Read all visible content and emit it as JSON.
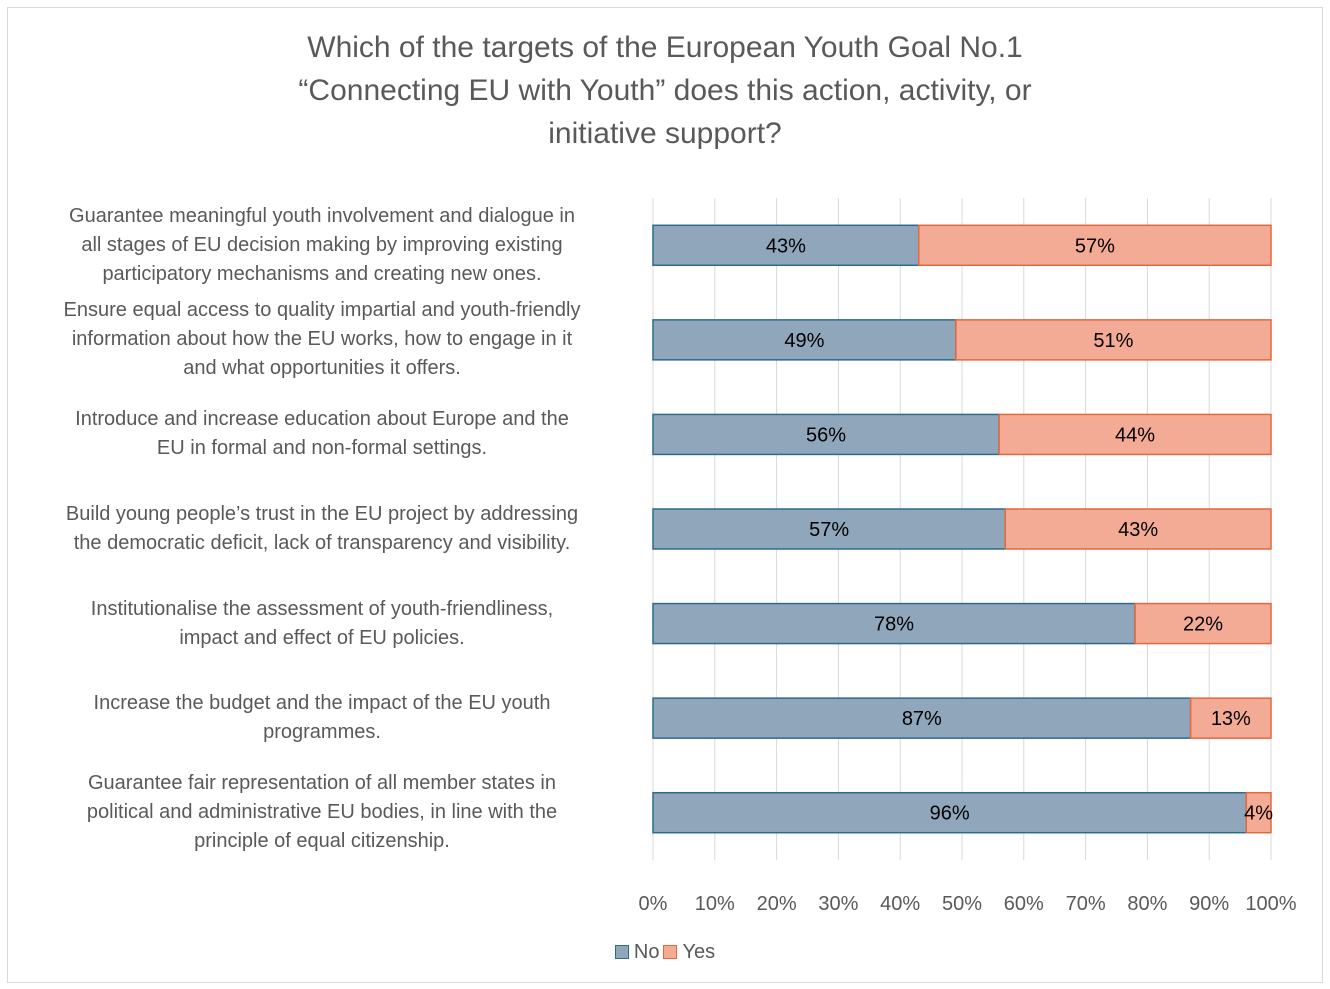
{
  "chart_data": {
    "type": "bar",
    "orientation": "horizontal",
    "stacked": true,
    "title": "Which of the targets of the European Youth Goal No.1 “Connecting EU with Youth” does this action, activity, or initiative support?",
    "title_lines": [
      "Which of the targets of the European Youth Goal No.1",
      "“Connecting EU with Youth” does this action, activity, or",
      "initiative support?"
    ],
    "categories": [
      "Guarantee meaningful youth involvement and dialogue in all stages of EU decision making by improving existing participatory mechanisms and creating new ones.",
      "Ensure equal access to quality impartial and youth-friendly information about how the EU works, how to engage in it and what opportunities it offers.",
      "Introduce and increase education about Europe and the EU in formal and non-formal settings.",
      "Build young people’s trust in the EU project by addressing the democratic deficit, lack of transparency and visibility.",
      "Institutionalise the assessment of youth-friendliness, impact and effect of EU policies.",
      "Increase the budget and the impact of the EU youth programmes.",
      "Guarantee fair representation of all member states in political and administrative EU bodies, in line with the principle of equal citizenship."
    ],
    "category_lines": [
      [
        "Guarantee meaningful youth involvement and dialogue in",
        "all stages of EU decision making by improving existing",
        "participatory mechanisms and creating new ones."
      ],
      [
        "Ensure equal access to quality impartial and youth-friendly",
        "information about how the EU works, how to engage in it",
        "and what opportunities it offers."
      ],
      [
        "Introduce and increase education about Europe and the",
        "EU in formal and non-formal settings."
      ],
      [
        "Build young people’s trust in the EU project by addressing",
        "the democratic deficit, lack of transparency and visibility."
      ],
      [
        "Institutionalise the assessment of youth-friendliness,",
        "impact and effect of EU policies."
      ],
      [
        "Increase the budget and the impact of the EU youth",
        "programmes."
      ],
      [
        "Guarantee fair representation of all member states in",
        "political and administrative EU bodies, in line with the",
        "principle of equal citizenship."
      ]
    ],
    "series": [
      {
        "name": "No",
        "values": [
          43,
          49,
          56,
          57,
          78,
          87,
          96
        ],
        "labels": [
          "43%",
          "49%",
          "56%",
          "57%",
          "78%",
          "87%",
          "96%"
        ],
        "color": "#8fa6bb",
        "stroke": "#2e6a8c"
      },
      {
        "name": "Yes",
        "values": [
          57,
          51,
          44,
          43,
          22,
          13,
          4
        ],
        "labels": [
          "57%",
          "51%",
          "44%",
          "43%",
          "22%",
          "13%",
          "4%"
        ],
        "color": "#f4ab96",
        "stroke": "#e2683e"
      }
    ],
    "xlim": [
      0,
      100
    ],
    "xticks": [
      0,
      10,
      20,
      30,
      40,
      50,
      60,
      70,
      80,
      90,
      100
    ],
    "xtick_labels": [
      "0%",
      "10%",
      "20%",
      "30%",
      "40%",
      "50%",
      "60%",
      "70%",
      "80%",
      "90%",
      "100%"
    ],
    "grid": true,
    "legend": "bottom",
    "text_color": "#595959",
    "grid_color": "#d9d9d9",
    "label_color": "#000000"
  }
}
